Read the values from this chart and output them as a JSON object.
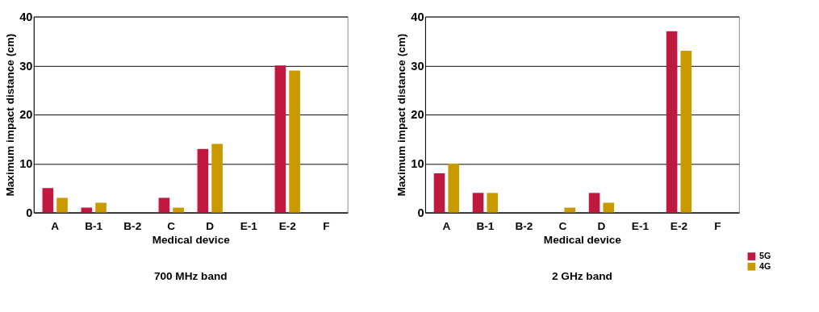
{
  "chart_data": [
    {
      "type": "bar",
      "title": "700 MHz band",
      "xlabel": "Medical device",
      "ylabel": "Maximum impact distance (cm)",
      "categories": [
        "A",
        "B-1",
        "B-2",
        "C",
        "D",
        "E-1",
        "E-2",
        "F"
      ],
      "series": [
        {
          "color": "#c0183f",
          "values": [
            5,
            1,
            null,
            3,
            13,
            null,
            30,
            null
          ]
        },
        {
          "color": "#c89a00",
          "values": [
            3,
            2,
            null,
            1,
            14,
            null,
            29,
            null
          ]
        }
      ],
      "ylim": [
        0,
        40
      ],
      "yticks": [
        0,
        10,
        20,
        30,
        40
      ],
      "grid": "y"
    },
    {
      "type": "bar",
      "title": "2 GHz band",
      "xlabel": "Medical device",
      "ylabel": "Maximum impact distance (cm)",
      "categories": [
        "A",
        "B-1",
        "B-2",
        "C",
        "D",
        "E-1",
        "E-2",
        "F"
      ],
      "series": [
        {
          "name": "5G",
          "color": "#c0183f",
          "values": [
            8,
            4,
            null,
            null,
            4,
            null,
            37,
            null
          ]
        },
        {
          "name": "4G",
          "color": "#c89a00",
          "values": [
            10,
            4,
            null,
            1,
            2,
            null,
            33,
            null
          ]
        }
      ],
      "ylim": [
        0,
        40
      ],
      "yticks": [
        0,
        10,
        20,
        30,
        40
      ],
      "grid": "y",
      "legend": "bottom right"
    }
  ]
}
